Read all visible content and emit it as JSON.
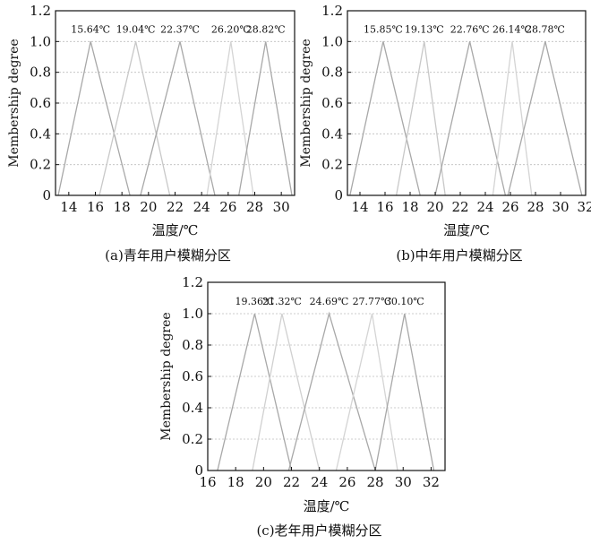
{
  "chart_data": [
    {
      "type": "line",
      "caption": "(a)青年用户模糊分区",
      "xlabel": "温度/℃",
      "ylabel": "Membership degree",
      "xlim": [
        13,
        31
      ],
      "ylim": [
        0,
        1.2
      ],
      "xticks": [
        "14",
        "16",
        "18",
        "20",
        "22",
        "24",
        "26",
        "28",
        "30"
      ],
      "yticks": [
        "0",
        "0.2",
        "0.4",
        "0.6",
        "0.8",
        "1.0",
        "1.2"
      ],
      "grid": "horizontal-dotted",
      "peak_labels": [
        "15.64℃",
        "19.04℃",
        "22.37℃",
        "26.20℃",
        "28.82℃"
      ],
      "series": [
        {
          "points": [
            [
              13.2,
              0
            ],
            [
              15.64,
              1
            ],
            [
              18.6,
              0
            ]
          ],
          "color": "#a8a8a8"
        },
        {
          "points": [
            [
              16.3,
              0
            ],
            [
              19.04,
              1
            ],
            [
              21.6,
              0
            ]
          ],
          "color": "#c8c8c8"
        },
        {
          "points": [
            [
              19.4,
              0
            ],
            [
              22.37,
              1
            ],
            [
              25.0,
              0
            ]
          ],
          "color": "#a8a8a8"
        },
        {
          "points": [
            [
              24.4,
              0
            ],
            [
              26.2,
              1
            ],
            [
              27.9,
              0
            ]
          ],
          "color": "#d4d4d4"
        },
        {
          "points": [
            [
              26.8,
              0
            ],
            [
              28.82,
              1
            ],
            [
              30.8,
              0
            ]
          ],
          "color": "#a8a8a8"
        }
      ]
    },
    {
      "type": "line",
      "caption": "(b)中年用户模糊分区",
      "xlabel": "温度/℃",
      "ylabel": "Membership degree",
      "xlim": [
        13,
        32
      ],
      "ylim": [
        0,
        1.2
      ],
      "xticks": [
        "14",
        "16",
        "18",
        "20",
        "22",
        "24",
        "26",
        "28",
        "30",
        "32"
      ],
      "yticks": [
        "0",
        "0.2",
        "0.4",
        "0.6",
        "0.8",
        "1.0",
        "1.2"
      ],
      "grid": "horizontal-dotted",
      "peak_labels": [
        "15.85℃",
        "19.13℃",
        "22.76℃",
        "26.14℃",
        "28.78℃"
      ],
      "series": [
        {
          "points": [
            [
              13.2,
              0
            ],
            [
              15.85,
              1
            ],
            [
              18.8,
              0
            ]
          ],
          "color": "#a8a8a8"
        },
        {
          "points": [
            [
              16.9,
              0
            ],
            [
              19.13,
              1
            ],
            [
              20.8,
              0
            ]
          ],
          "color": "#c8c8c8"
        },
        {
          "points": [
            [
              20.0,
              0
            ],
            [
              22.76,
              1
            ],
            [
              25.6,
              0
            ]
          ],
          "color": "#a8a8a8"
        },
        {
          "points": [
            [
              24.6,
              0
            ],
            [
              26.14,
              1
            ],
            [
              27.7,
              0
            ]
          ],
          "color": "#d4d4d4"
        },
        {
          "points": [
            [
              25.8,
              0
            ],
            [
              28.78,
              1
            ],
            [
              31.7,
              0
            ]
          ],
          "color": "#a8a8a8"
        }
      ]
    },
    {
      "type": "line",
      "caption": "(c)老年用户模糊分区",
      "xlabel": "温度/℃",
      "ylabel": "Membership degree",
      "xlim": [
        16,
        33
      ],
      "ylim": [
        0,
        1.2
      ],
      "xticks": [
        "16",
        "18",
        "20",
        "22",
        "24",
        "26",
        "28",
        "30",
        "32"
      ],
      "yticks": [
        "0",
        "0.2",
        "0.4",
        "0.6",
        "0.8",
        "1.0",
        "1.2"
      ],
      "grid": "horizontal-dotted",
      "peak_labels": [
        "19.36℃",
        "21.32℃",
        "24.69℃",
        "27.77℃",
        "30.10℃"
      ],
      "series": [
        {
          "points": [
            [
              16.7,
              0
            ],
            [
              19.36,
              1
            ],
            [
              22.0,
              0
            ]
          ],
          "color": "#a8a8a8"
        },
        {
          "points": [
            [
              19.2,
              0
            ],
            [
              21.32,
              1
            ],
            [
              24.0,
              0
            ]
          ],
          "color": "#d0d0d0"
        },
        {
          "points": [
            [
              21.8,
              0
            ],
            [
              24.69,
              1
            ],
            [
              28.0,
              0
            ]
          ],
          "color": "#a8a8a8"
        },
        {
          "points": [
            [
              25.2,
              0
            ],
            [
              27.77,
              1
            ],
            [
              29.6,
              0
            ]
          ],
          "color": "#d4d4d4"
        },
        {
          "points": [
            [
              28.0,
              0
            ],
            [
              30.1,
              1
            ],
            [
              32.2,
              0
            ]
          ],
          "color": "#a8a8a8"
        }
      ]
    }
  ]
}
